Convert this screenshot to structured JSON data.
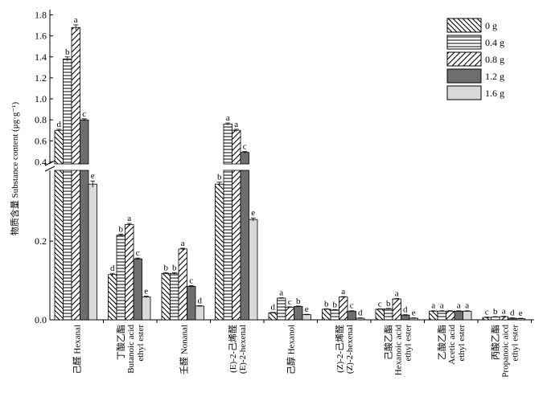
{
  "chart_data": {
    "type": "bar",
    "ylabel": "物质含量 Substance content (μg·g⁻¹)",
    "yticks_lower": [
      "0.0",
      "0.2"
    ],
    "yticks_upper": [
      "0.4",
      "0.6",
      "0.8",
      "1.0",
      "1.2",
      "1.4",
      "1.6",
      "1.8"
    ],
    "ylim_lower": [
      0,
      0.38
    ],
    "ylim_upper": [
      0.38,
      1.85
    ],
    "axis_break": 0.38,
    "categories": [
      [
        "己醛 Hexanal"
      ],
      [
        "丁酸乙酯",
        "Butanoic acid",
        "ethyl ester"
      ],
      [
        "壬醛 Nonanal"
      ],
      [
        "(E)-2-己烯醛",
        "(E)-2-hexenal"
      ],
      [
        "己醇 Hexanol"
      ],
      [
        "(Z)-2-己烯醛",
        "(Z)-2-hexenal"
      ],
      [
        "己酸乙酯",
        "Hexanoic acid",
        "ethyl ester"
      ],
      [
        "乙酸乙酯",
        "Acetic acid",
        "ethyl ester"
      ],
      [
        "丙酸乙酯",
        "Propanoic aicd",
        "ethyl ester"
      ]
    ],
    "series": [
      {
        "name": "0 g",
        "pattern": "diag-back",
        "values": [
          0.7,
          0.115,
          0.118,
          0.345,
          0.018,
          0.027,
          0.027,
          0.022,
          0.006
        ]
      },
      {
        "name": "0.4 g",
        "pattern": "horizontal",
        "values": [
          1.38,
          0.215,
          0.118,
          0.76,
          0.055,
          0.025,
          0.028,
          0.022,
          0.007
        ]
      },
      {
        "name": "0.8 g",
        "pattern": "diag-fwd",
        "values": [
          1.68,
          0.242,
          0.18,
          0.7,
          0.032,
          0.058,
          0.053,
          0.022,
          0.008
        ]
      },
      {
        "name": "1.2 g",
        "pattern": "dark",
        "values": [
          0.8,
          0.155,
          0.085,
          0.49,
          0.034,
          0.022,
          0.012,
          0.022,
          0.004
        ]
      },
      {
        "name": "1.6 g",
        "pattern": "light",
        "values": [
          0.345,
          0.058,
          0.035,
          0.255,
          0.013,
          0.004,
          0.004,
          0.022,
          0.003
        ]
      }
    ],
    "errors": [
      [
        0.01,
        0.003,
        0.002,
        0.005,
        0.001,
        0.001,
        0.001,
        0.001,
        0.001
      ],
      [
        0.02,
        0.003,
        0.002,
        0.01,
        0.001,
        0.001,
        0.001,
        0.001,
        0.001
      ],
      [
        0.025,
        0.003,
        0.002,
        0.01,
        0.001,
        0.001,
        0.001,
        0.001,
        0.001
      ],
      [
        0.01,
        0.002,
        0.002,
        0.008,
        0.001,
        0.001,
        0.001,
        0.001,
        0.001
      ],
      [
        0.008,
        0.002,
        0.001,
        0.004,
        0.001,
        0.001,
        0.001,
        0.001,
        0.001
      ]
    ],
    "significance": [
      [
        "d",
        "d",
        "b",
        "b",
        "d",
        "b",
        "c",
        "a",
        "c"
      ],
      [
        "b",
        "b",
        "b",
        "a",
        "a",
        "b",
        "b",
        "a",
        "b"
      ],
      [
        "a",
        "a",
        "a",
        "a",
        "c",
        "a",
        "a",
        "",
        "a"
      ],
      [
        "c",
        "c",
        "c",
        "c",
        "b",
        "c",
        "d",
        "a",
        "d"
      ],
      [
        "e",
        "e",
        "d",
        "e",
        "e",
        "d",
        "e",
        "a",
        "e"
      ]
    ],
    "legend_position": "top-right"
  }
}
